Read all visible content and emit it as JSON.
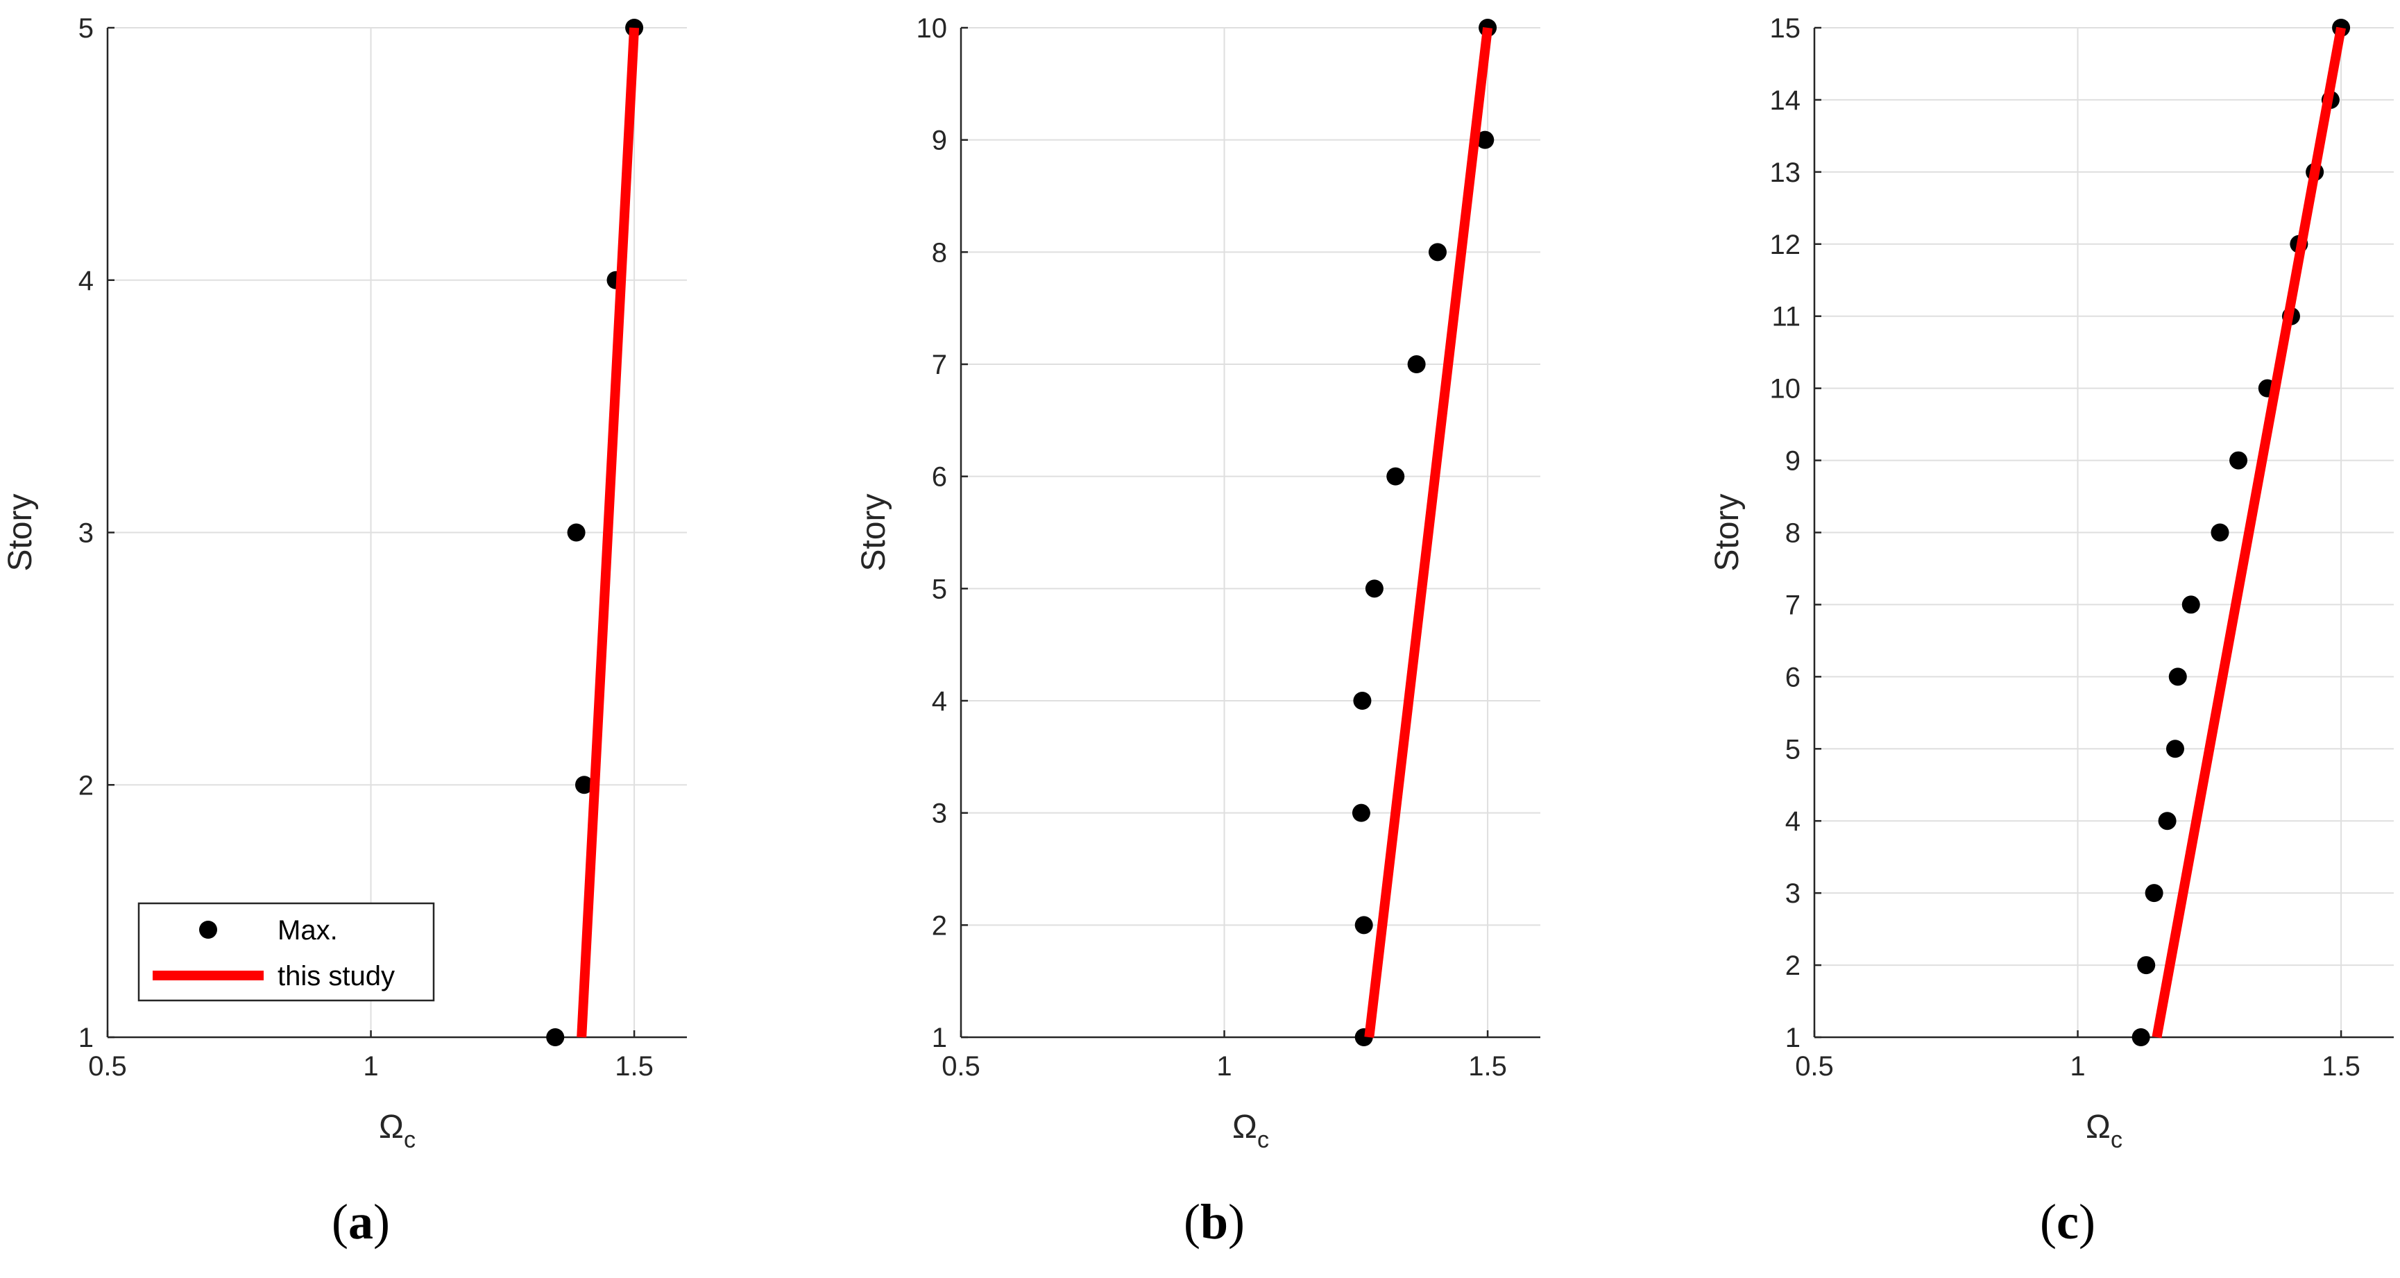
{
  "chart_data": [
    {
      "type": "scatter",
      "panel_label": "a",
      "xlabel": "Ω",
      "xlabel_sub": "c",
      "ylabel": "Story",
      "xlim": [
        0.5,
        1.6
      ],
      "ylim": [
        1,
        5
      ],
      "xticks": [
        "0.5",
        "1",
        "1.5"
      ],
      "xtick_values": [
        0.5,
        1,
        1.5
      ],
      "yticks": [
        "1",
        "2",
        "3",
        "4",
        "5"
      ],
      "ytick_values": [
        1,
        2,
        3,
        4,
        5
      ],
      "grid": true,
      "series": [
        {
          "name": "Max.",
          "type": "scatter",
          "color": "#000000",
          "x": [
            1.35,
            1.405,
            1.39,
            1.465,
            1.5
          ],
          "y": [
            1,
            2,
            3,
            4,
            5
          ]
        },
        {
          "name": "this study",
          "type": "line",
          "color": "#ff0000",
          "x": [
            1.4,
            1.5
          ],
          "y": [
            1,
            5
          ]
        }
      ],
      "legend": {
        "placement": "bottom-left"
      }
    },
    {
      "type": "scatter",
      "panel_label": "b",
      "xlabel": "Ω",
      "xlabel_sub": "c",
      "ylabel": "Story",
      "xlim": [
        0.5,
        1.6
      ],
      "ylim": [
        1,
        10
      ],
      "xticks": [
        "0.5",
        "1",
        "1.5"
      ],
      "xtick_values": [
        0.5,
        1,
        1.5
      ],
      "yticks": [
        "1",
        "2",
        "3",
        "4",
        "5",
        "6",
        "7",
        "8",
        "9",
        "10"
      ],
      "ytick_values": [
        1,
        2,
        3,
        4,
        5,
        6,
        7,
        8,
        9,
        10
      ],
      "grid": true,
      "series": [
        {
          "type": "scatter",
          "color": "#000000",
          "x": [
            1.265,
            1.265,
            1.26,
            1.262,
            1.285,
            1.325,
            1.365,
            1.405,
            1.495,
            1.5
          ],
          "y": [
            1,
            2,
            3,
            4,
            5,
            6,
            7,
            8,
            9,
            10
          ]
        },
        {
          "type": "line",
          "color": "#ff0000",
          "x": [
            1.275,
            1.5
          ],
          "y": [
            1,
            10
          ]
        }
      ]
    },
    {
      "type": "scatter",
      "panel_label": "c",
      "xlabel": "Ω",
      "xlabel_sub": "c",
      "ylabel": "Story",
      "xlim": [
        0.5,
        1.6
      ],
      "ylim": [
        1,
        15
      ],
      "xticks": [
        "0.5",
        "1",
        "1.5"
      ],
      "xtick_values": [
        0.5,
        1,
        1.5
      ],
      "yticks": [
        "1",
        "2",
        "3",
        "4",
        "5",
        "6",
        "7",
        "8",
        "9",
        "10",
        "11",
        "12",
        "13",
        "14",
        "15"
      ],
      "ytick_values": [
        1,
        2,
        3,
        4,
        5,
        6,
        7,
        8,
        9,
        10,
        11,
        12,
        13,
        14,
        15
      ],
      "grid": true,
      "series": [
        {
          "type": "scatter",
          "color": "#000000",
          "x": [
            1.12,
            1.13,
            1.145,
            1.17,
            1.185,
            1.19,
            1.215,
            1.27,
            1.305,
            1.36,
            1.405,
            1.42,
            1.45,
            1.48,
            1.5
          ],
          "y": [
            1,
            2,
            3,
            4,
            5,
            6,
            7,
            8,
            9,
            10,
            11,
            12,
            13,
            14,
            15
          ]
        },
        {
          "type": "line",
          "color": "#ff0000",
          "x": [
            1.15,
            1.5
          ],
          "y": [
            1,
            15
          ]
        }
      ]
    }
  ]
}
